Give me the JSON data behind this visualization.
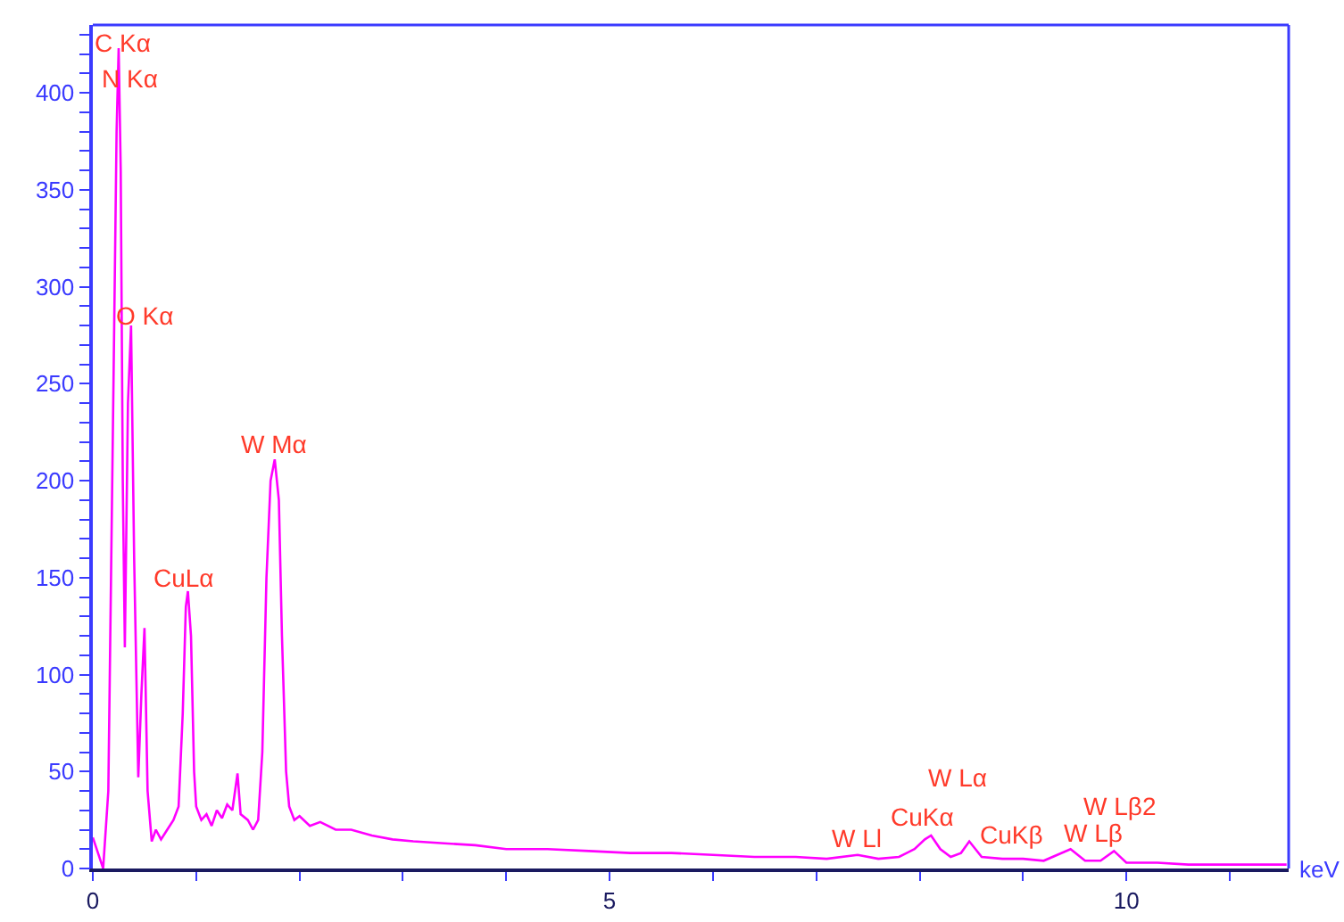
{
  "chart_data": {
    "type": "line",
    "xlabel": "keV",
    "x": [
      0,
      0.05,
      0.1,
      0.15,
      0.2,
      0.23,
      0.25,
      0.27,
      0.29,
      0.31,
      0.34,
      0.37,
      0.4,
      0.44,
      0.47,
      0.5,
      0.53,
      0.57,
      0.61,
      0.66,
      0.72,
      0.78,
      0.83,
      0.87,
      0.9,
      0.92,
      0.95,
      0.98,
      1.0,
      1.05,
      1.1,
      1.15,
      1.2,
      1.25,
      1.3,
      1.35,
      1.4,
      1.43,
      1.5,
      1.55,
      1.6,
      1.64,
      1.68,
      1.72,
      1.76,
      1.8,
      1.83,
      1.87,
      1.9,
      1.95,
      2.0,
      2.1,
      2.2,
      2.35,
      2.5,
      2.7,
      2.9,
      3.1,
      3.4,
      3.7,
      4.0,
      4.4,
      4.8,
      5.2,
      5.6,
      6.0,
      6.4,
      6.8,
      7.1,
      7.4,
      7.6,
      7.8,
      7.95,
      8.05,
      8.11,
      8.2,
      8.3,
      8.4,
      8.48,
      8.6,
      8.8,
      9.0,
      9.2,
      9.46,
      9.6,
      9.75,
      9.88,
      10.0,
      10.3,
      10.6,
      11.0,
      11.3,
      11.55
    ],
    "series": [
      {
        "color": "#ff00ff",
        "values": [
          16,
          8,
          0,
          40,
          250,
          380,
          423,
          360,
          200,
          114,
          240,
          280,
          160,
          47,
          90,
          124,
          40,
          14,
          20,
          15,
          20,
          25,
          32,
          80,
          135,
          143,
          120,
          50,
          32,
          25,
          28,
          22,
          30,
          26,
          33,
          30,
          49,
          28,
          25,
          20,
          25,
          60,
          150,
          200,
          211,
          190,
          120,
          50,
          32,
          25,
          27,
          22,
          24,
          20,
          20,
          17,
          15,
          14,
          13,
          12,
          10,
          10,
          9,
          8,
          8,
          7,
          6,
          6,
          5,
          7,
          5,
          6,
          10,
          15,
          17,
          10,
          6,
          8,
          14,
          6,
          5,
          5,
          4,
          10,
          4,
          4,
          9,
          3,
          3,
          2,
          2,
          2,
          2
        ]
      }
    ],
    "xlim": [
      0,
      11.57
    ],
    "ylim": [
      0,
      435
    ],
    "xticks": [
      0,
      {
        "value": 1,
        "label": null
      },
      {
        "value": 2,
        "label": null
      },
      {
        "value": 3,
        "label": null
      },
      {
        "value": 4,
        "label": null
      },
      5,
      {
        "value": 6,
        "label": null
      },
      {
        "value": 7,
        "label": null
      },
      {
        "value": 8,
        "label": null
      },
      {
        "value": 9,
        "label": null
      },
      10,
      {
        "value": 11,
        "label": null
      }
    ],
    "yticks": [
      0,
      {
        "value": 10,
        "label": null
      },
      {
        "value": 20,
        "label": null
      },
      {
        "value": 30,
        "label": null
      },
      {
        "value": 40,
        "label": null
      },
      50,
      {
        "value": 60,
        "label": null
      },
      {
        "value": 70,
        "label": null
      },
      {
        "value": 80,
        "label": null
      },
      {
        "value": 90,
        "label": null
      },
      100,
      {
        "value": 110,
        "label": null
      },
      {
        "value": 120,
        "label": null
      },
      {
        "value": 130,
        "label": null
      },
      {
        "value": 140,
        "label": null
      },
      150,
      {
        "value": 160,
        "label": null
      },
      {
        "value": 170,
        "label": null
      },
      {
        "value": 180,
        "label": null
      },
      {
        "value": 190,
        "label": null
      },
      200,
      {
        "value": 210,
        "label": null
      },
      {
        "value": 220,
        "label": null
      },
      {
        "value": 230,
        "label": null
      },
      {
        "value": 240,
        "label": null
      },
      250,
      {
        "value": 260,
        "label": null
      },
      {
        "value": 270,
        "label": null
      },
      {
        "value": 280,
        "label": null
      },
      {
        "value": 290,
        "label": null
      },
      300,
      {
        "value": 310,
        "label": null
      },
      {
        "value": 320,
        "label": null
      },
      {
        "value": 330,
        "label": null
      },
      {
        "value": 340,
        "label": null
      },
      350,
      {
        "value": 360,
        "label": null
      },
      {
        "value": 370,
        "label": null
      },
      {
        "value": 380,
        "label": null
      },
      {
        "value": 390,
        "label": null
      },
      400,
      {
        "value": 410,
        "label": null
      },
      {
        "value": 420,
        "label": null
      },
      {
        "value": 430,
        "label": null
      }
    ],
    "annotations": [
      {
        "text": "C Kα",
        "x": 0.25,
        "y": 423
      },
      {
        "text": "N Kα",
        "x": 0.25,
        "y": 423
      },
      {
        "text": "O Kα",
        "x": 0.37,
        "y": 280
      },
      {
        "text": "W Mα",
        "x": 1.8,
        "y": 211
      },
      {
        "text": "CuLα",
        "x": 0.92,
        "y": 143
      },
      {
        "text": "W Lα",
        "x": 8.11,
        "y": 17
      },
      {
        "text": "CuKα",
        "x": 8.11,
        "y": 17
      },
      {
        "text": "CuKβ",
        "x": 8.48,
        "y": 14
      },
      {
        "text": "W Ll",
        "x": 7.4,
        "y": 7
      },
      {
        "text": "W Lβ2",
        "x": 9.88,
        "y": 9
      },
      {
        "text": "W Lβ",
        "x": 9.46,
        "y": 10
      }
    ],
    "grid": false,
    "marker": "none",
    "line_style": "solid"
  }
}
